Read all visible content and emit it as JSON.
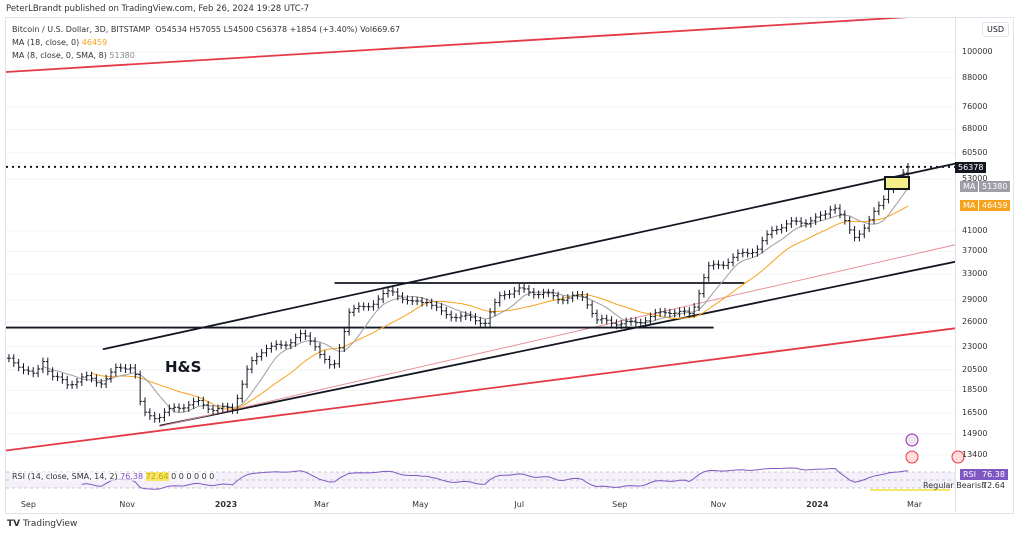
{
  "header": {
    "published": "PeterLBrandt published on TradingView.com, Feb 26, 2024 19:28 UTC-7"
  },
  "legend": {
    "symbol": "Bitcoin / U.S. Dollar, 3D, BITSTAMP",
    "ohlc": "O54534 H57055 L54500 C56378 +1854 (+3.40%) Vol669.67",
    "ma18_label": "MA (18, close, 0)",
    "ma18_value": "46459",
    "ma8_label": "MA (8, close, 0, SMA, 8)",
    "ma8_value": "51380"
  },
  "rsi": {
    "label": "RSI (14, close, SMA, 14, 2)",
    "value": "76.38",
    "sma_value": "72.64",
    "zeros": "0 0 0 0 0 0",
    "tag": "RSI",
    "divergence": "Regular Bearish"
  },
  "price_axis": {
    "currency": "USD",
    "ticks": [
      "100000",
      "88000",
      "76000",
      "68000",
      "60500",
      "53000",
      "41000",
      "37000",
      "33000",
      "29000",
      "26000",
      "23000",
      "20500",
      "18500",
      "16500",
      "14900",
      "13400"
    ],
    "last_price": "56378",
    "ma_tag": "MA",
    "ma8_tag_value": "51380",
    "ma18_tag_value": "46459"
  },
  "annotation": "H&S",
  "footer": {
    "brand": "TradingView"
  },
  "colors": {
    "ma18": "#f7a21b",
    "ma8": "#9e9e9e",
    "rsi": "#7e57c2",
    "trend_red": "#e53946",
    "trend_black": "#131722"
  },
  "chart_data": {
    "type": "ohlc",
    "scale": "log",
    "interval": "3D",
    "ylim": [
      12800,
      125000
    ],
    "x_ticks": [
      "Sep",
      "Nov",
      "2023",
      "Mar",
      "May",
      "Jul",
      "Sep",
      "Nov",
      "2024",
      "Mar"
    ],
    "closes": [
      [
        "2022-08-20",
        21500
      ],
      [
        "2022-08-26",
        21000
      ],
      [
        "2022-09-05",
        19800
      ],
      [
        "2022-09-10",
        21500
      ],
      [
        "2022-09-15",
        20000
      ],
      [
        "2022-09-25",
        19000
      ],
      [
        "2022-10-05",
        19800
      ],
      [
        "2022-10-15",
        19200
      ],
      [
        "2022-10-25",
        20500
      ],
      [
        "2022-11-05",
        21000
      ],
      [
        "2022-11-10",
        16500
      ],
      [
        "2022-11-20",
        16200
      ],
      [
        "2022-12-01",
        17000
      ],
      [
        "2022-12-15",
        17400
      ],
      [
        "2022-12-25",
        16800
      ],
      [
        "2023-01-05",
        16900
      ],
      [
        "2023-01-15",
        20800
      ],
      [
        "2023-01-25",
        23000
      ],
      [
        "2023-02-05",
        23000
      ],
      [
        "2023-02-15",
        24500
      ],
      [
        "2023-02-25",
        23200
      ],
      [
        "2023-03-08",
        20300
      ],
      [
        "2023-03-18",
        27500
      ],
      [
        "2023-03-28",
        28000
      ],
      [
        "2023-04-10",
        30000
      ],
      [
        "2023-04-15",
        30300
      ],
      [
        "2023-04-25",
        28500
      ],
      [
        "2023-05-05",
        29000
      ],
      [
        "2023-05-15",
        27000
      ],
      [
        "2023-05-25",
        26800
      ],
      [
        "2023-06-10",
        26000
      ],
      [
        "2023-06-20",
        30000
      ],
      [
        "2023-07-01",
        30500
      ],
      [
        "2023-07-15",
        30000
      ],
      [
        "2023-07-25",
        29300
      ],
      [
        "2023-08-10",
        29500
      ],
      [
        "2023-08-18",
        26200
      ],
      [
        "2023-09-01",
        25900
      ],
      [
        "2023-09-10",
        25800
      ],
      [
        "2023-09-20",
        26700
      ],
      [
        "2023-10-01",
        27500
      ],
      [
        "2023-10-15",
        27000
      ],
      [
        "2023-10-25",
        34000
      ],
      [
        "2023-11-05",
        35000
      ],
      [
        "2023-11-15",
        36500
      ],
      [
        "2023-11-25",
        37500
      ],
      [
        "2023-12-05",
        41500
      ],
      [
        "2023-12-15",
        42500
      ],
      [
        "2023-12-25",
        43000
      ],
      [
        "2024-01-05",
        44000
      ],
      [
        "2024-01-11",
        47000
      ],
      [
        "2024-01-20",
        41500
      ],
      [
        "2024-01-23",
        39500
      ],
      [
        "2024-02-01",
        42500
      ],
      [
        "2024-02-10",
        47500
      ],
      [
        "2024-02-15",
        52000
      ],
      [
        "2024-02-20",
        52000
      ],
      [
        "2024-02-26",
        56378
      ]
    ],
    "trendlines": [
      {
        "name": "upper-red",
        "color": "#e53946",
        "from": [
          "2022-08-18",
          90500
        ],
        "to": [
          "2024-02-26",
          119000
        ]
      },
      {
        "name": "channel-top",
        "color": "#131722",
        "from": [
          "2022-10-17",
          22700
        ],
        "to": [
          "2024-03-28",
          57500
        ]
      },
      {
        "name": "channel-bottom",
        "color": "#131722",
        "from": [
          "2022-11-21",
          15500
        ],
        "to": [
          "2024-04-10",
          36000
        ]
      },
      {
        "name": "lower-red",
        "color": "#e53946",
        "from": [
          "2022-08-18",
          13700
        ],
        "to": [
          "2024-04-10",
          25600
        ]
      },
      {
        "name": "pink",
        "color": "#e8919a",
        "from": [
          "2022-11-21",
          15450
        ],
        "to": [
          "2024-04-10",
          39300
        ]
      },
      {
        "name": "neckline",
        "color": "#131722",
        "from": [
          "2022-08-18",
          25300
        ],
        "to": [
          "2023-10-29",
          25300
        ]
      },
      {
        "name": "range-top",
        "color": "#131722",
        "from": [
          "2023-03-09",
          31600
        ],
        "to": [
          "2023-11-17",
          31600
        ]
      }
    ]
  }
}
